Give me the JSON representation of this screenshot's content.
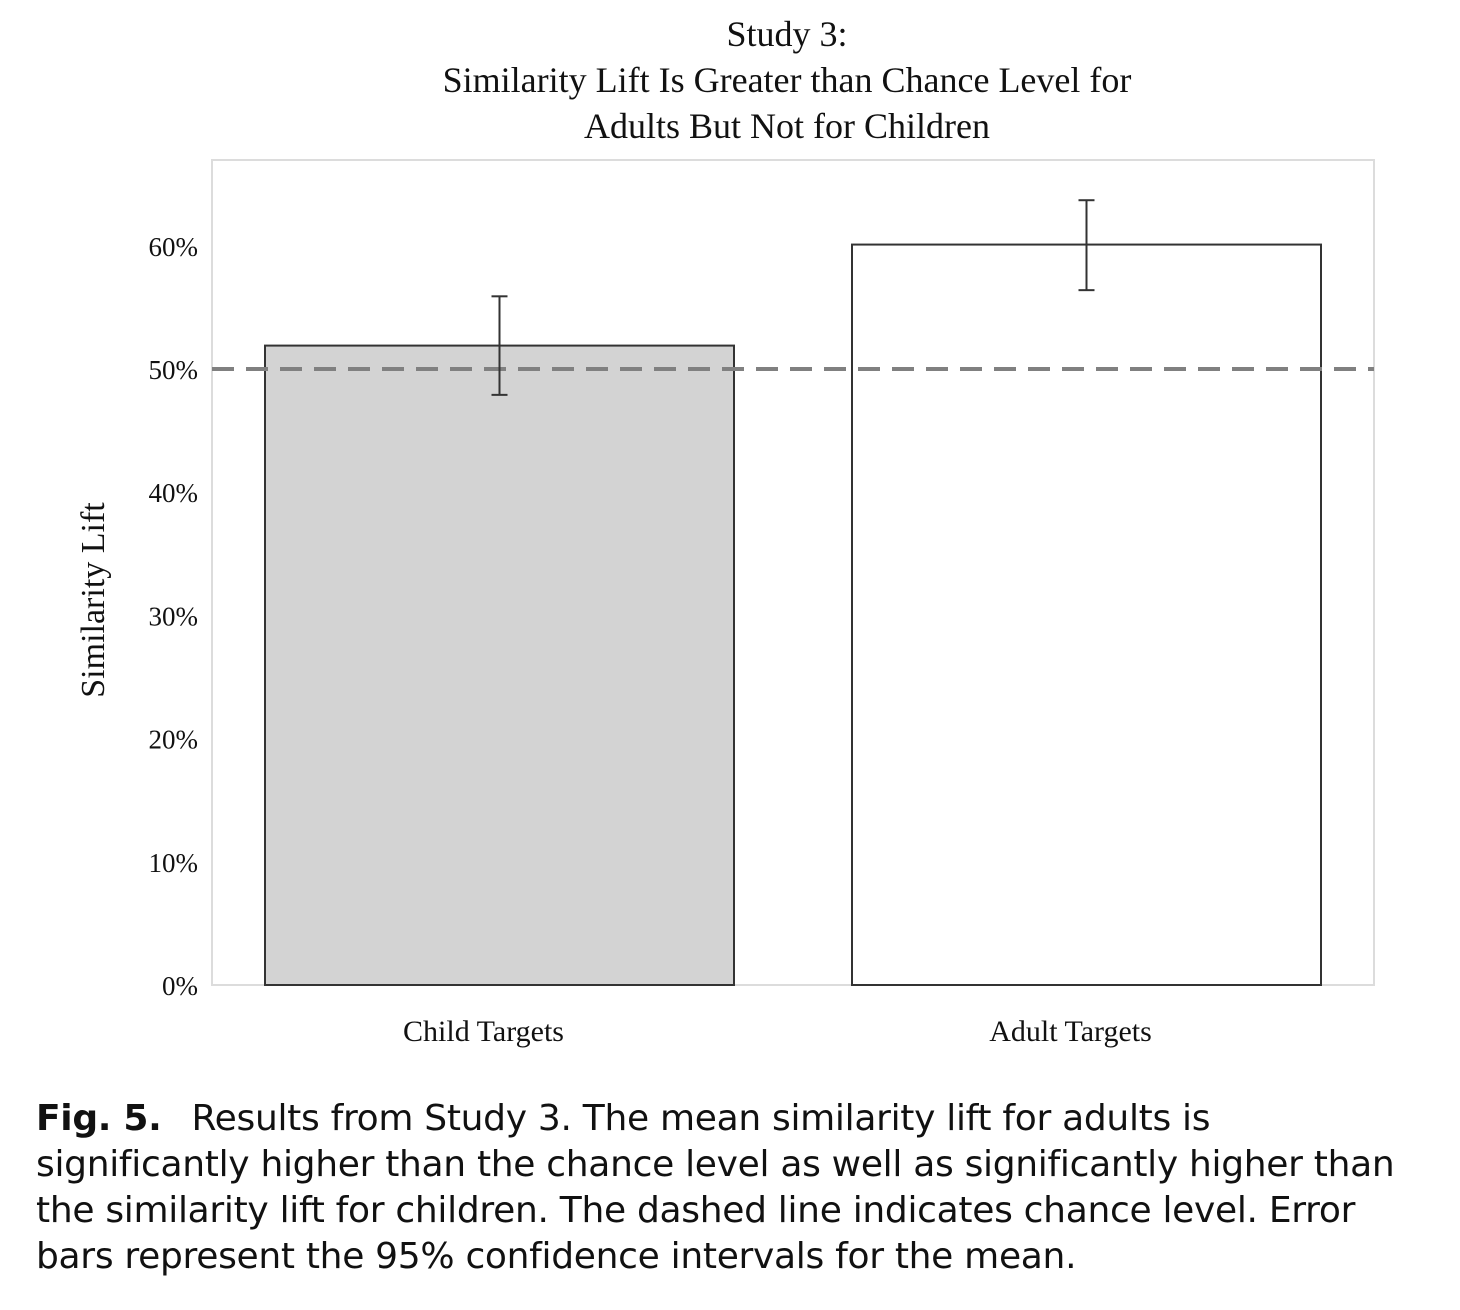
{
  "chart_data": {
    "type": "bar",
    "title_lines": [
      "Study 3:",
      "Similarity Lift Is Greater than Chance Level for",
      "Adults But Not for Children"
    ],
    "xlabel": "",
    "ylabel": "Similarity Lift",
    "categories": [
      "Child Targets",
      "Adult Targets"
    ],
    "values": [
      0.519,
      0.601
    ],
    "error_low": [
      0.479,
      0.564
    ],
    "error_high": [
      0.559,
      0.637
    ],
    "ylim": [
      0,
      0.67
    ],
    "yticks": [
      0,
      0.1,
      0.2,
      0.3,
      0.4,
      0.5,
      0.6
    ],
    "ytick_labels": [
      "0%",
      "10%",
      "20%",
      "30%",
      "40%",
      "50%",
      "60%"
    ],
    "reference_line": 0.5,
    "bar_colors": [
      "#d3d3d3",
      "#ffffff"
    ],
    "grid": false,
    "legend": "none"
  },
  "caption": {
    "label": "Fig. 5.",
    "text": "Results from Study 3. The mean similarity lift for adults is significantly higher than the chance level as well as significantly higher than the similarity lift for children. The dashed line indicates chance level. Error bars represent the 95% confidence intervals for the mean."
  }
}
